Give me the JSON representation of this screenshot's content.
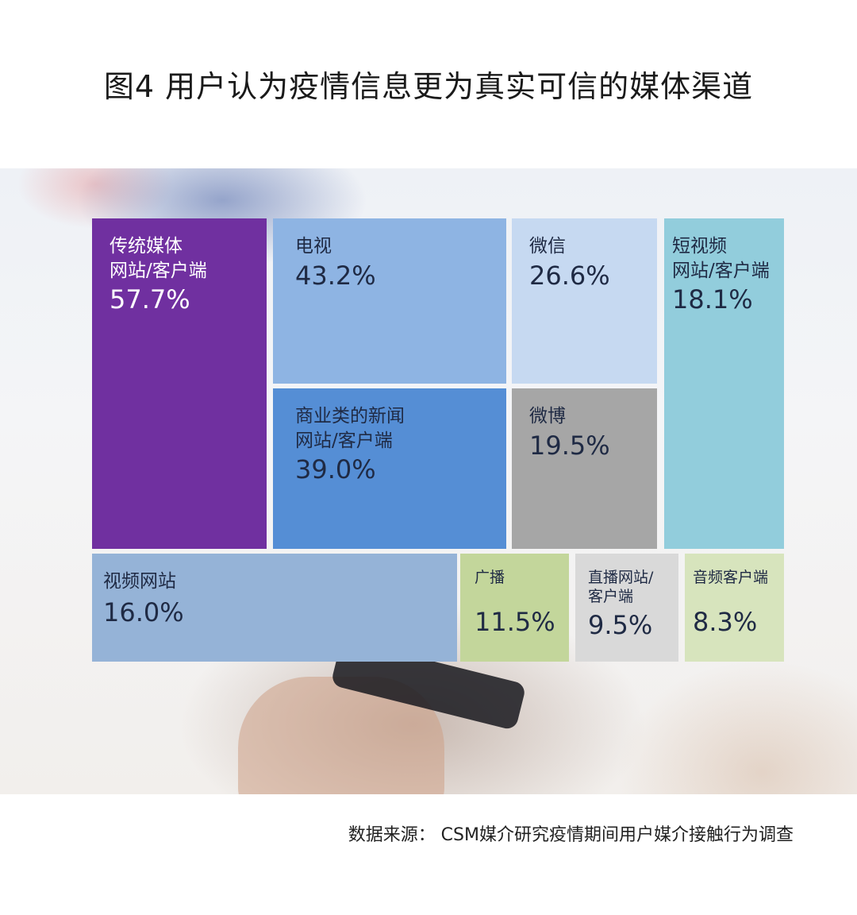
{
  "title": "图4  用户认为疫情信息更为真实可信的媒体渠道",
  "source": "数据来源：  CSM媒介研究疫情期间用户媒介接触行为调查",
  "chart_data": {
    "type": "treemap",
    "title": "图4  用户认为疫情信息更为真实可信的媒体渠道",
    "unit": "%",
    "items": [
      {
        "label": "传统媒体\n网站/客户端",
        "value": 57.7,
        "value_text": "57.7%",
        "color": "#7030A0",
        "text_color": "#ffffff"
      },
      {
        "label": "电视",
        "value": 43.2,
        "value_text": "43.2%",
        "color": "#8EB4E3",
        "text_color": "#1f2a44"
      },
      {
        "label": "微信",
        "value": 26.6,
        "value_text": "26.6%",
        "color": "#C6D9F1",
        "text_color": "#1f2a44"
      },
      {
        "label": "短视频\n网站/客户端",
        "value": 18.1,
        "value_text": "18.1%",
        "color": "#92CDDC",
        "text_color": "#1f2a44"
      },
      {
        "label": "商业类的新闻\n网站/客户端",
        "value": 39.0,
        "value_text": "39.0%",
        "color": "#558ED5",
        "text_color": "#1f2a44"
      },
      {
        "label": "微博",
        "value": 19.5,
        "value_text": "19.5%",
        "color": "#A6A6A6",
        "text_color": "#1f2a44"
      },
      {
        "label": "视频网站",
        "value": 16.0,
        "value_text": "16.0%",
        "color": "#95B3D7",
        "text_color": "#1f2a44"
      },
      {
        "label": "广播",
        "value": 11.5,
        "value_text": "11.5%",
        "color": "#C3D69B",
        "text_color": "#1f2a44"
      },
      {
        "label": "直播网站/\n客户端",
        "value": 9.5,
        "value_text": "9.5%",
        "color": "#D9D9D9",
        "text_color": "#1f2a44"
      },
      {
        "label": "音频客户端",
        "value": 8.3,
        "value_text": "8.3%",
        "color": "#D7E4BD",
        "text_color": "#1f2a44"
      }
    ]
  }
}
